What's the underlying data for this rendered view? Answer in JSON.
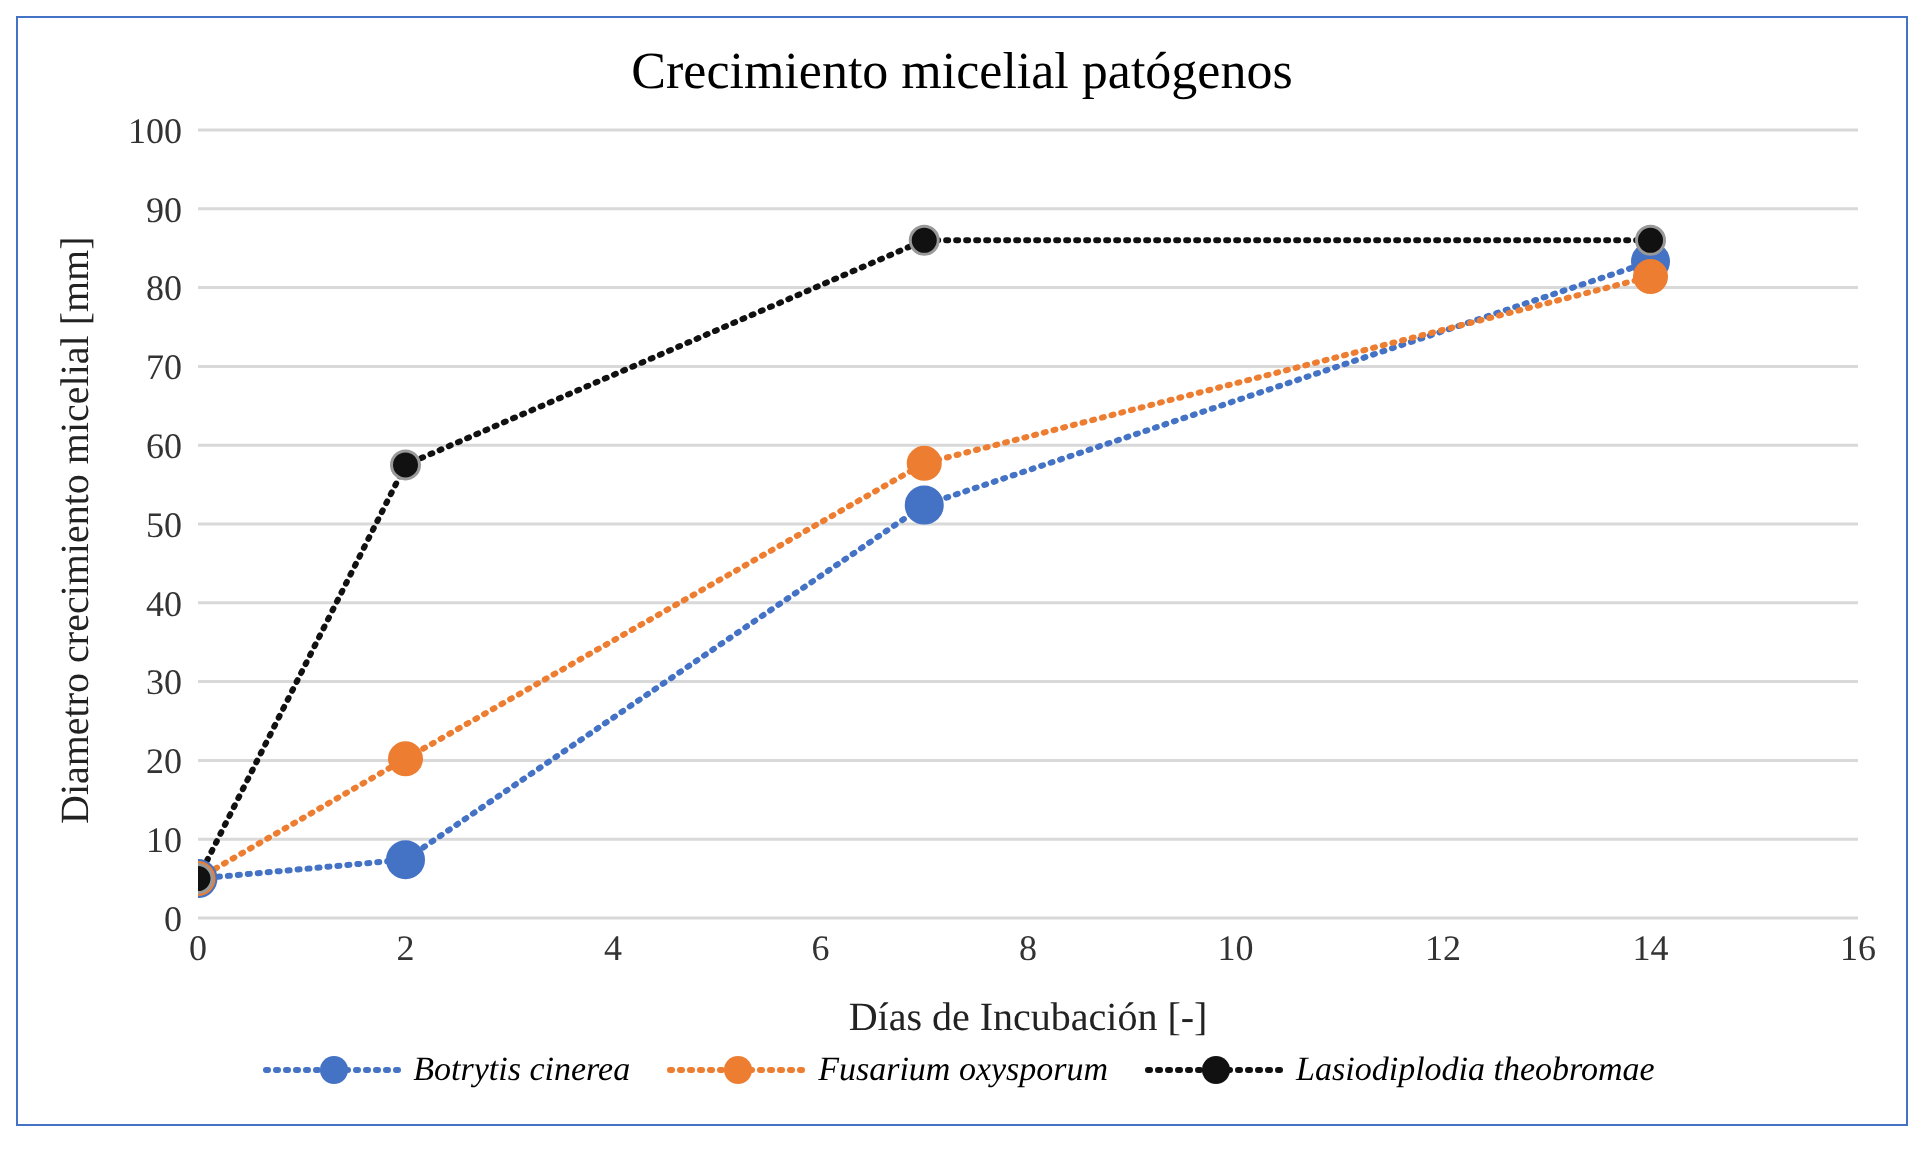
{
  "chart_data": {
    "type": "line",
    "title": "Crecimiento micelial patógenos",
    "xlabel": "Días de Incubación [-]",
    "ylabel": "Diametro crecimiento micelial [mm]",
    "x": [
      0,
      2,
      7,
      14
    ],
    "series": [
      {
        "name": "Botrytis cinerea",
        "color": "#4472c4",
        "values": [
          5,
          7.4,
          52.4,
          83.3
        ]
      },
      {
        "name": "Fusarium oxysporum",
        "color": "#ed7d31",
        "values": [
          5,
          20.2,
          57.7,
          81.4
        ]
      },
      {
        "name": "Lasiodiplodia theobromae",
        "color": "#111111",
        "values": [
          5,
          57.5,
          86,
          86
        ]
      }
    ],
    "xlim": [
      0,
      16
    ],
    "xticks": [
      0,
      2,
      4,
      6,
      8,
      10,
      12,
      14,
      16
    ],
    "ylim": [
      0,
      100
    ],
    "yticks": [
      0,
      10,
      20,
      30,
      40,
      50,
      60,
      70,
      80,
      90,
      100
    ],
    "grid": "y",
    "legend": "bottom",
    "marker": "circle",
    "line_style": "dotted"
  }
}
